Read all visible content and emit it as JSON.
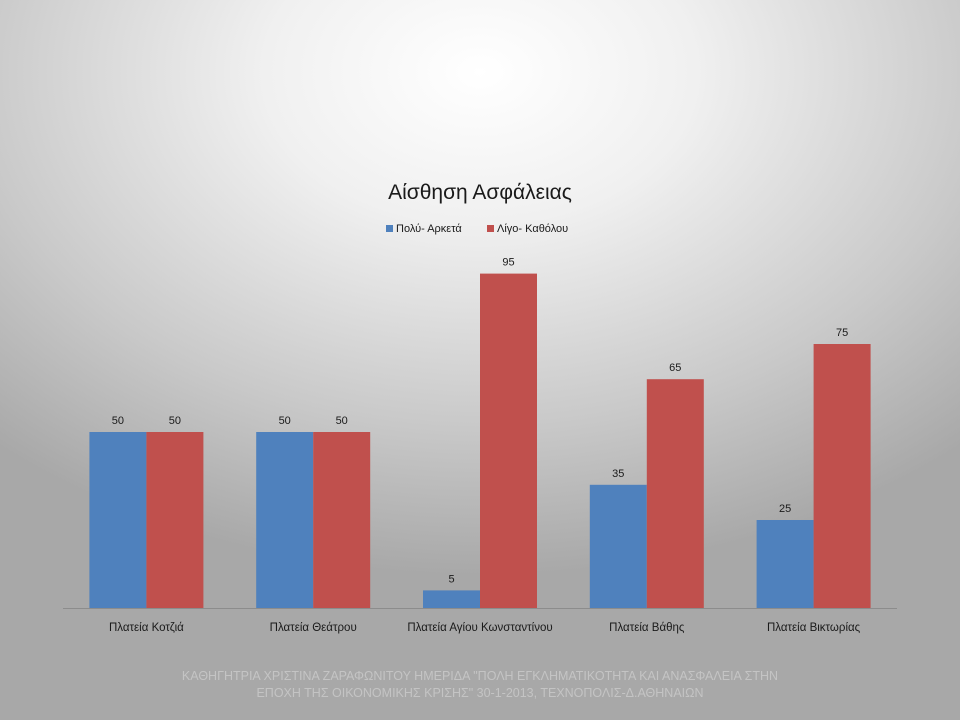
{
  "chart_data": {
    "type": "bar",
    "title": "Αίσθηση Ασφάλειας",
    "legend_position": "top",
    "categories": [
      "Πλατεία Κοτζιά",
      "Πλατεία Θεάτρου",
      "Πλατεία Αγίου Κωνσταντίνου",
      "Πλατεία Βάθης",
      "Πλατεία Βικτωρίας"
    ],
    "series": [
      {
        "name": "Πολύ- Αρκετά",
        "color": "#4f81bd",
        "values": [
          50,
          50,
          5,
          35,
          25
        ]
      },
      {
        "name": "Λίγο- Καθόλου",
        "color": "#c0504d",
        "values": [
          50,
          50,
          95,
          65,
          75
        ]
      }
    ],
    "ylim": [
      0,
      100
    ],
    "grid": false,
    "data_labels": true
  },
  "footer": {
    "line1": "ΚΑΘΗΓΗΤΡΙΑ ΧΡΙΣΤΙΝΑ ΖΑΡΑΦΩΝΙΤΟΥ ΗΜΕΡΙΔΑ \"ΠΟΛΗ ΕΓΚΛΗΜΑΤΙΚΟΤΗΤΑ ΚΑΙ ΑΝΑΣΦΑΛΕΙΑ ΣΤΗΝ",
    "line2": "ΕΠΟΧΗ ΤΗΣ ΟΙΚΟΝΟΜΙΚΗΣ ΚΡΙΣΗΣ\" 30-1-2013, ΤΕΧΝΟΠΟΛΙΣ-Δ.ΑΘΗΝΑΙΩΝ"
  }
}
